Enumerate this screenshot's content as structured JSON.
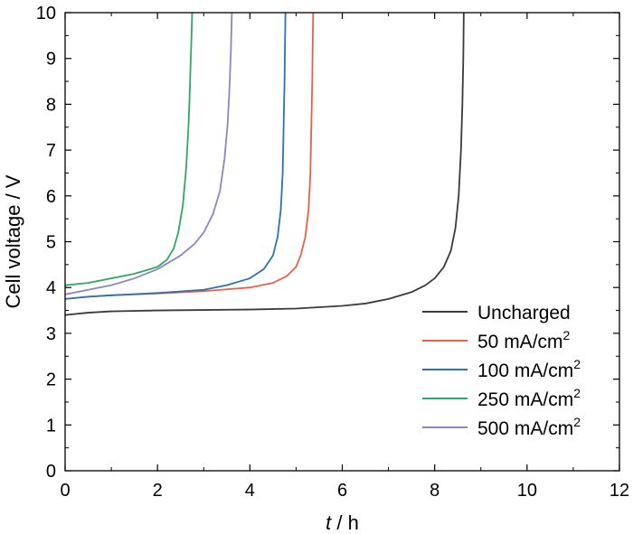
{
  "chart_data": {
    "type": "line",
    "title": "",
    "xlabel_italic": "t",
    "xlabel_rest": " / h",
    "ylabel": "Cell voltage / V",
    "xlim": [
      0,
      12
    ],
    "ylim": [
      0,
      10
    ],
    "xticks": [
      0,
      2,
      4,
      6,
      8,
      10,
      12
    ],
    "yticks": [
      0,
      1,
      2,
      3,
      4,
      5,
      6,
      7,
      8,
      9,
      10
    ],
    "grid": false,
    "legend": "bottom-right",
    "series": [
      {
        "name": "Uncharged",
        "color": "#3a3a3a",
        "points": [
          [
            0,
            3.4
          ],
          [
            0.5,
            3.45
          ],
          [
            1,
            3.48
          ],
          [
            2,
            3.5
          ],
          [
            3,
            3.51
          ],
          [
            4,
            3.52
          ],
          [
            5,
            3.54
          ],
          [
            6,
            3.6
          ],
          [
            6.5,
            3.65
          ],
          [
            7,
            3.75
          ],
          [
            7.5,
            3.9
          ],
          [
            7.8,
            4.05
          ],
          [
            8,
            4.2
          ],
          [
            8.2,
            4.45
          ],
          [
            8.35,
            4.8
          ],
          [
            8.45,
            5.3
          ],
          [
            8.52,
            6.0
          ],
          [
            8.57,
            7.0
          ],
          [
            8.6,
            8.0
          ],
          [
            8.62,
            9.0
          ],
          [
            8.63,
            10.0
          ]
        ]
      },
      {
        "name": "50 mA/cm",
        "name_sup": "2",
        "color": "#e8604a",
        "points": [
          [
            0,
            3.75
          ],
          [
            0.5,
            3.8
          ],
          [
            1,
            3.83
          ],
          [
            2,
            3.87
          ],
          [
            3,
            3.92
          ],
          [
            4,
            4.0
          ],
          [
            4.5,
            4.1
          ],
          [
            4.8,
            4.25
          ],
          [
            5.0,
            4.45
          ],
          [
            5.1,
            4.7
          ],
          [
            5.2,
            5.1
          ],
          [
            5.27,
            5.7
          ],
          [
            5.31,
            6.5
          ],
          [
            5.33,
            7.5
          ],
          [
            5.35,
            8.5
          ],
          [
            5.36,
            9.3
          ],
          [
            5.37,
            10.0
          ]
        ]
      },
      {
        "name": "100 mA/cm",
        "name_sup": "2",
        "color": "#2a72b0",
        "points": [
          [
            0,
            3.75
          ],
          [
            0.5,
            3.8
          ],
          [
            1,
            3.83
          ],
          [
            2,
            3.88
          ],
          [
            3,
            3.95
          ],
          [
            3.5,
            4.05
          ],
          [
            4,
            4.2
          ],
          [
            4.3,
            4.4
          ],
          [
            4.5,
            4.7
          ],
          [
            4.6,
            5.1
          ],
          [
            4.67,
            5.7
          ],
          [
            4.71,
            6.5
          ],
          [
            4.73,
            7.5
          ],
          [
            4.75,
            8.5
          ],
          [
            4.76,
            9.3
          ],
          [
            4.77,
            10.0
          ]
        ]
      },
      {
        "name": "250 mA/cm",
        "name_sup": "2",
        "color": "#2fa866",
        "points": [
          [
            0,
            4.05
          ],
          [
            0.5,
            4.1
          ],
          [
            1,
            4.2
          ],
          [
            1.5,
            4.3
          ],
          [
            2,
            4.45
          ],
          [
            2.2,
            4.6
          ],
          [
            2.35,
            4.85
          ],
          [
            2.45,
            5.2
          ],
          [
            2.55,
            5.8
          ],
          [
            2.62,
            6.6
          ],
          [
            2.67,
            7.5
          ],
          [
            2.7,
            8.3
          ],
          [
            2.72,
            9.0
          ],
          [
            2.74,
            9.6
          ],
          [
            2.75,
            10.0
          ]
        ]
      },
      {
        "name": "500 mA/cm",
        "name_sup": "2",
        "color": "#8f84c4",
        "points": [
          [
            0,
            3.85
          ],
          [
            0.5,
            3.95
          ],
          [
            1,
            4.05
          ],
          [
            1.5,
            4.2
          ],
          [
            2,
            4.4
          ],
          [
            2.5,
            4.7
          ],
          [
            2.8,
            4.95
          ],
          [
            3.0,
            5.2
          ],
          [
            3.2,
            5.6
          ],
          [
            3.35,
            6.1
          ],
          [
            3.45,
            6.8
          ],
          [
            3.52,
            7.6
          ],
          [
            3.56,
            8.4
          ],
          [
            3.59,
            9.2
          ],
          [
            3.61,
            10.0
          ]
        ]
      }
    ]
  }
}
